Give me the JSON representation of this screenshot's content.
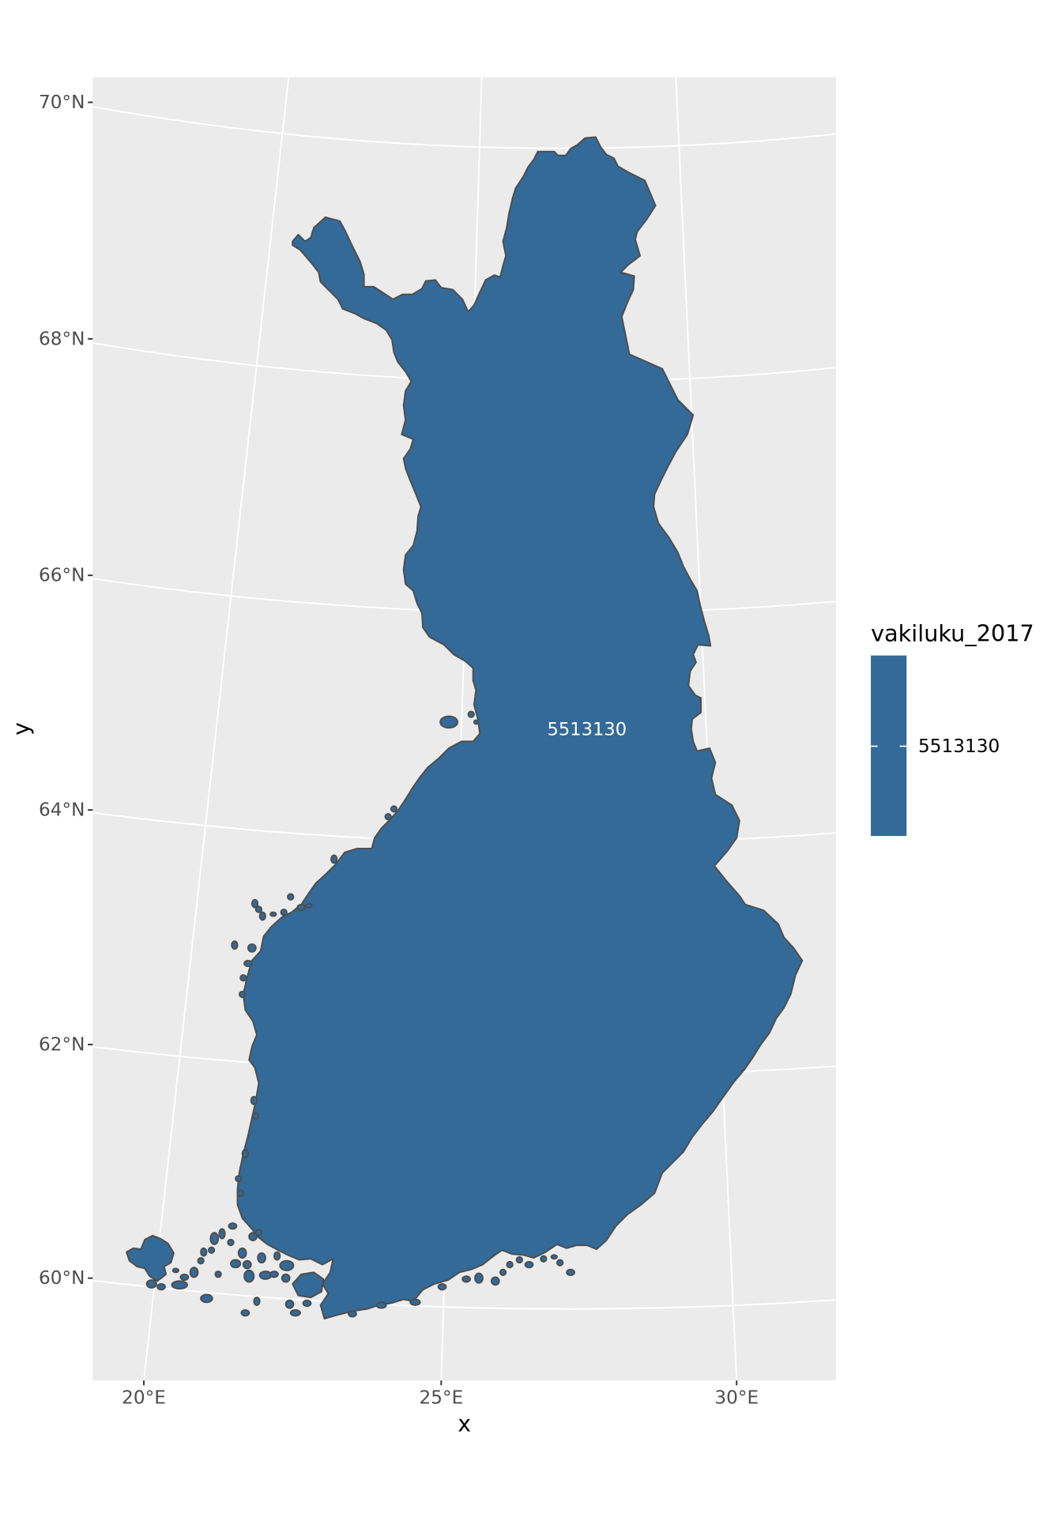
{
  "map_data": {
    "type": "choropleth",
    "regions": [
      {
        "value": 5513130,
        "label": "5513130"
      }
    ],
    "grid": true,
    "legend_position": "right"
  },
  "axes": {
    "x": {
      "title": "x",
      "tick_values": [
        20,
        25,
        30
      ],
      "tick_labels": [
        "20°E",
        "25°E",
        "30°E"
      ]
    },
    "y": {
      "title": "y",
      "tick_values": [
        60,
        62,
        64,
        66,
        68,
        70
      ],
      "tick_labels": [
        "60°N",
        "62°N",
        "64°N",
        "66°N",
        "68°N",
        "70°N"
      ]
    }
  },
  "legend": {
    "title": "vakiluku_2017",
    "labels": [
      "5513130"
    ]
  },
  "colors": {
    "panel_background": "#EBEBEB",
    "gridline": "#FFFFFF",
    "region_fill": "#336A98",
    "region_outline": "#4D4D4D",
    "tick_label": "#4D4D4D",
    "legend_tick": "#FFFFFF"
  }
}
